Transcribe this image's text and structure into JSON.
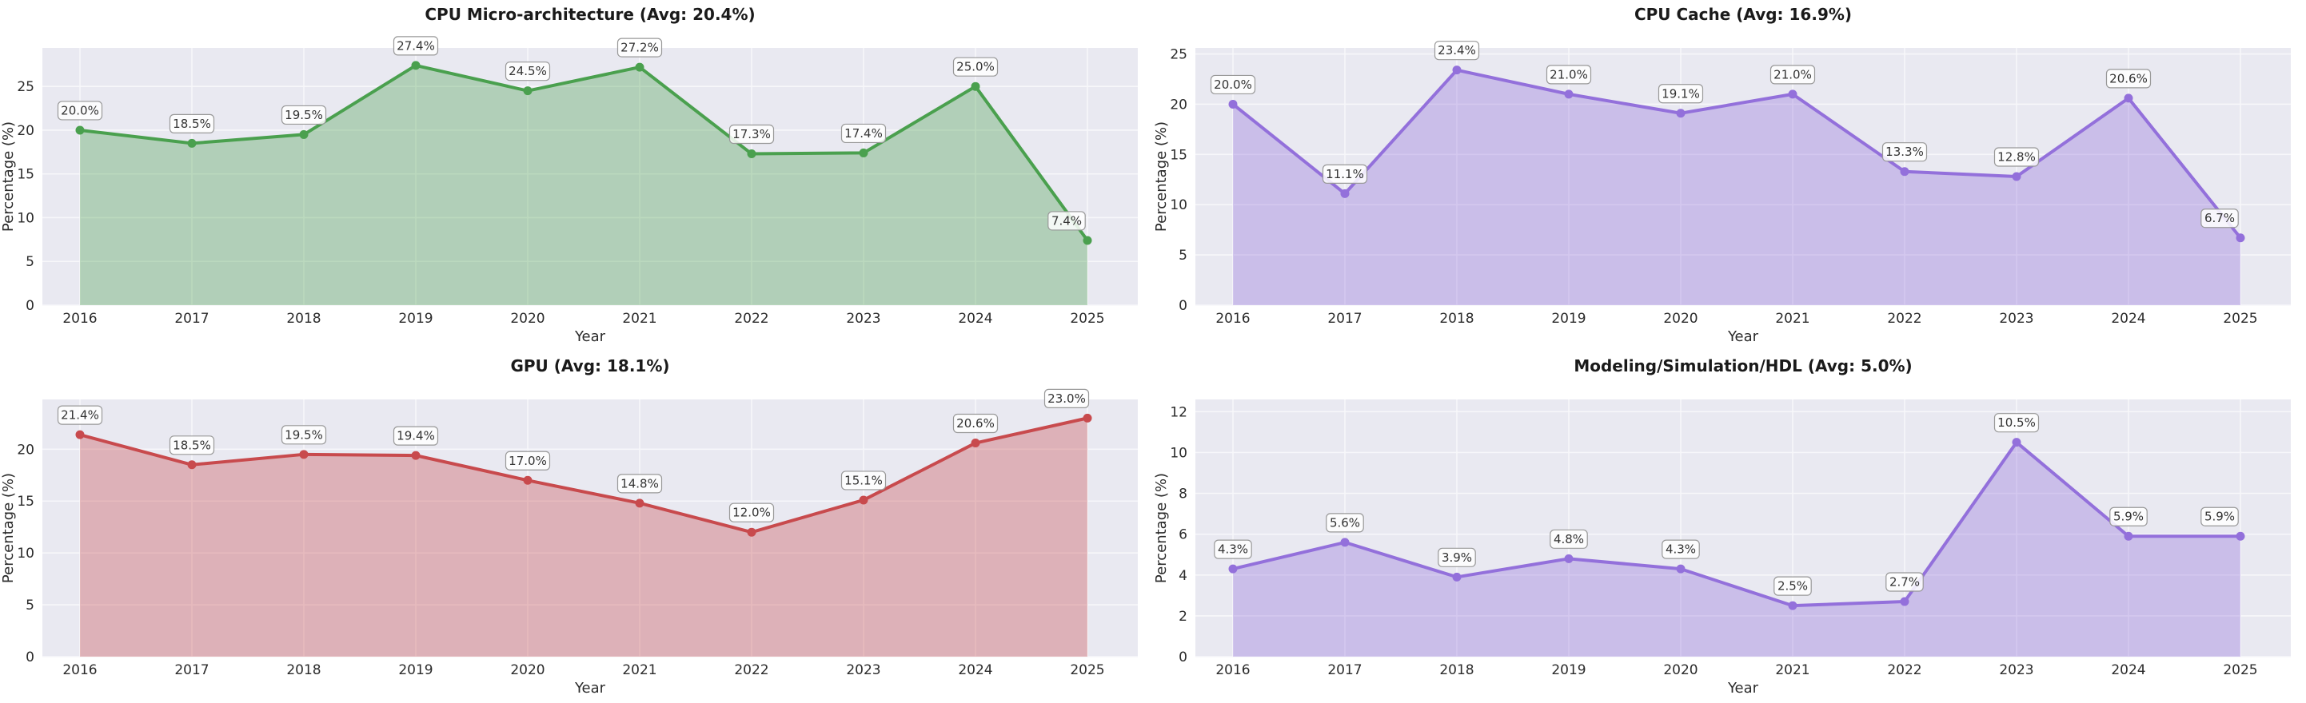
{
  "figure": {
    "background": "#ffffff",
    "plot_background": "#e9e9f1",
    "grid_color": "#f7f7fa",
    "tick_color": "#2b2b2b",
    "annotation_box_fill": "#ffffff",
    "annotation_box_border": "#999999",
    "annotation_text_color": "#333333"
  },
  "chart_data": [
    {
      "type": "area",
      "title": "CPU Micro-architecture (Avg: 20.4%)",
      "xlabel": "Year",
      "ylabel": "Percentage (%)",
      "categories": [
        "2016",
        "2017",
        "2018",
        "2019",
        "2020",
        "2021",
        "2022",
        "2023",
        "2024",
        "2025"
      ],
      "values": [
        20.0,
        18.5,
        19.5,
        27.4,
        24.5,
        27.2,
        17.3,
        17.4,
        25.0,
        7.4
      ],
      "point_labels": [
        "20.0%",
        "18.5%",
        "19.5%",
        "27.4%",
        "24.5%",
        "27.2%",
        "17.3%",
        "17.4%",
        "25.0%",
        "7.4%"
      ],
      "average_label": "20.4%",
      "line_color": "#4aa04e",
      "fill_color": "rgba(74,160,78,0.35)",
      "ylim": [
        0,
        29.4
      ],
      "yticks": [
        0,
        5,
        10,
        15,
        20,
        25
      ],
      "grid": true,
      "legend": "none"
    },
    {
      "type": "area",
      "title": "CPU Cache (Avg: 16.9%)",
      "xlabel": "Year",
      "ylabel": "Percentage (%)",
      "categories": [
        "2016",
        "2017",
        "2018",
        "2019",
        "2020",
        "2021",
        "2022",
        "2023",
        "2024",
        "2025"
      ],
      "values": [
        20.0,
        11.1,
        23.4,
        21.0,
        19.1,
        21.0,
        13.3,
        12.8,
        20.6,
        6.7
      ],
      "point_labels": [
        "20.0%",
        "11.1%",
        "23.4%",
        "21.0%",
        "19.1%",
        "21.0%",
        "13.3%",
        "12.8%",
        "20.6%",
        "6.7%"
      ],
      "average_label": "16.9%",
      "line_color": "#9370db",
      "fill_color": "rgba(147,112,219,0.35)",
      "ylim": [
        0,
        25.6
      ],
      "yticks": [
        0,
        5,
        10,
        15,
        20,
        25
      ],
      "grid": true,
      "legend": "none"
    },
    {
      "type": "area",
      "title": "GPU (Avg: 18.1%)",
      "xlabel": "Year",
      "ylabel": "Percentage (%)",
      "categories": [
        "2016",
        "2017",
        "2018",
        "2019",
        "2020",
        "2021",
        "2022",
        "2023",
        "2024",
        "2025"
      ],
      "values": [
        21.4,
        18.5,
        19.5,
        19.4,
        17.0,
        14.8,
        12.0,
        15.1,
        20.6,
        23.0
      ],
      "point_labels": [
        "21.4%",
        "18.5%",
        "19.5%",
        "19.4%",
        "17.0%",
        "14.8%",
        "12.0%",
        "15.1%",
        "20.6%",
        "23.0%"
      ],
      "average_label": "18.1%",
      "line_color": "#c84a4d",
      "fill_color": "rgba(200,74,77,0.35)",
      "ylim": [
        0,
        24.8
      ],
      "yticks": [
        0,
        5,
        10,
        15,
        20
      ],
      "grid": true,
      "legend": "none"
    },
    {
      "type": "area",
      "title": "Modeling/Simulation/HDL (Avg: 5.0%)",
      "xlabel": "Year",
      "ylabel": "Percentage (%)",
      "categories": [
        "2016",
        "2017",
        "2018",
        "2019",
        "2020",
        "2021",
        "2022",
        "2023",
        "2024",
        "2025"
      ],
      "values": [
        4.3,
        5.6,
        3.9,
        4.8,
        4.3,
        2.5,
        2.7,
        10.5,
        5.9,
        5.9
      ],
      "point_labels": [
        "4.3%",
        "5.6%",
        "3.9%",
        "4.8%",
        "4.3%",
        "2.5%",
        "2.7%",
        "10.5%",
        "5.9%",
        "5.9%"
      ],
      "average_label": "5.0%",
      "line_color": "#9370db",
      "fill_color": "rgba(147,112,219,0.35)",
      "ylim": [
        0,
        12.6
      ],
      "yticks": [
        0,
        2,
        4,
        6,
        8,
        10,
        12
      ],
      "grid": true,
      "legend": "none"
    }
  ]
}
